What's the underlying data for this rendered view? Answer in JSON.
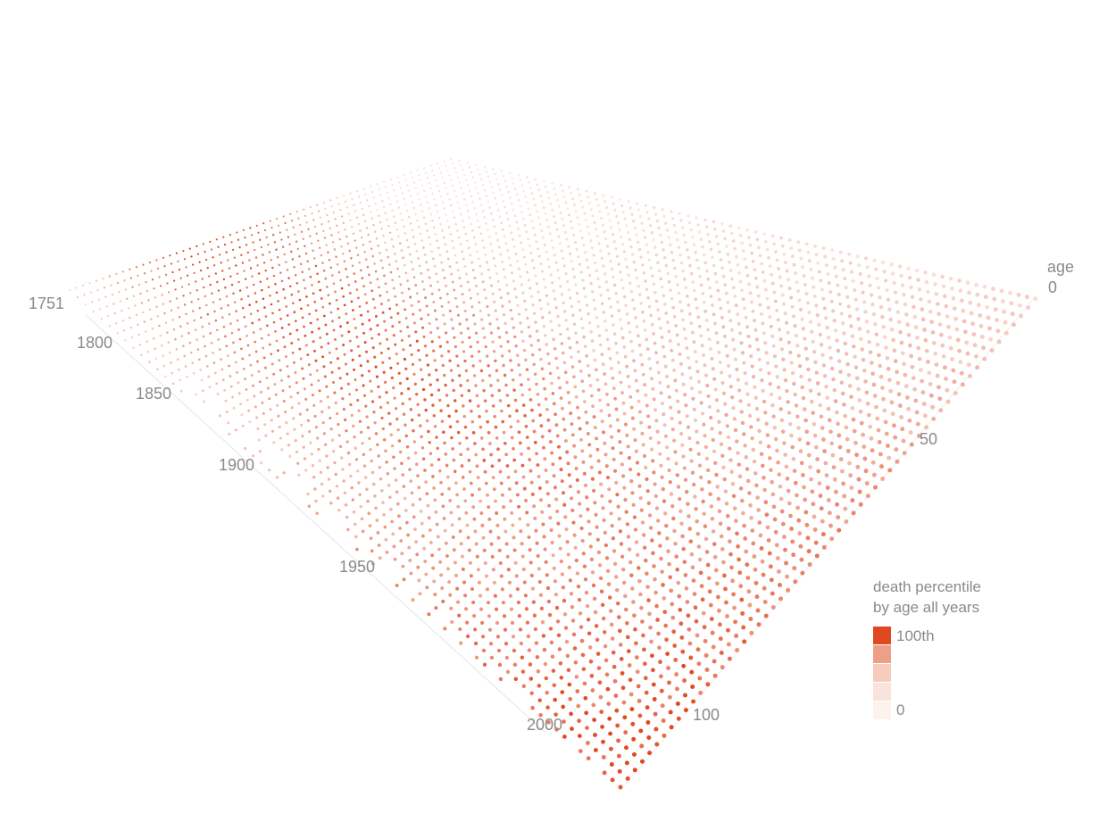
{
  "chart_data": {
    "type": "scatter",
    "subtype": "3d-dot-surface",
    "title": "",
    "x_axis": {
      "label": "",
      "ticks": [
        "1751",
        "1800",
        "1850",
        "1900",
        "1950",
        "2000"
      ],
      "range": [
        1751,
        2014
      ]
    },
    "y_axis": {
      "label": "age",
      "ticks": [
        "0",
        "50",
        "100"
      ],
      "range": [
        0,
        110
      ]
    },
    "color_scale": {
      "label_line1": "death percentile",
      "label_line2": "by age all years",
      "max_label": "100th",
      "min_label": "0",
      "colors": [
        "#e0491f",
        "#ee9f87",
        "#f6ccbf",
        "#fae3dc",
        "#fdf2ee"
      ]
    },
    "accent_color": "#e0491f"
  }
}
